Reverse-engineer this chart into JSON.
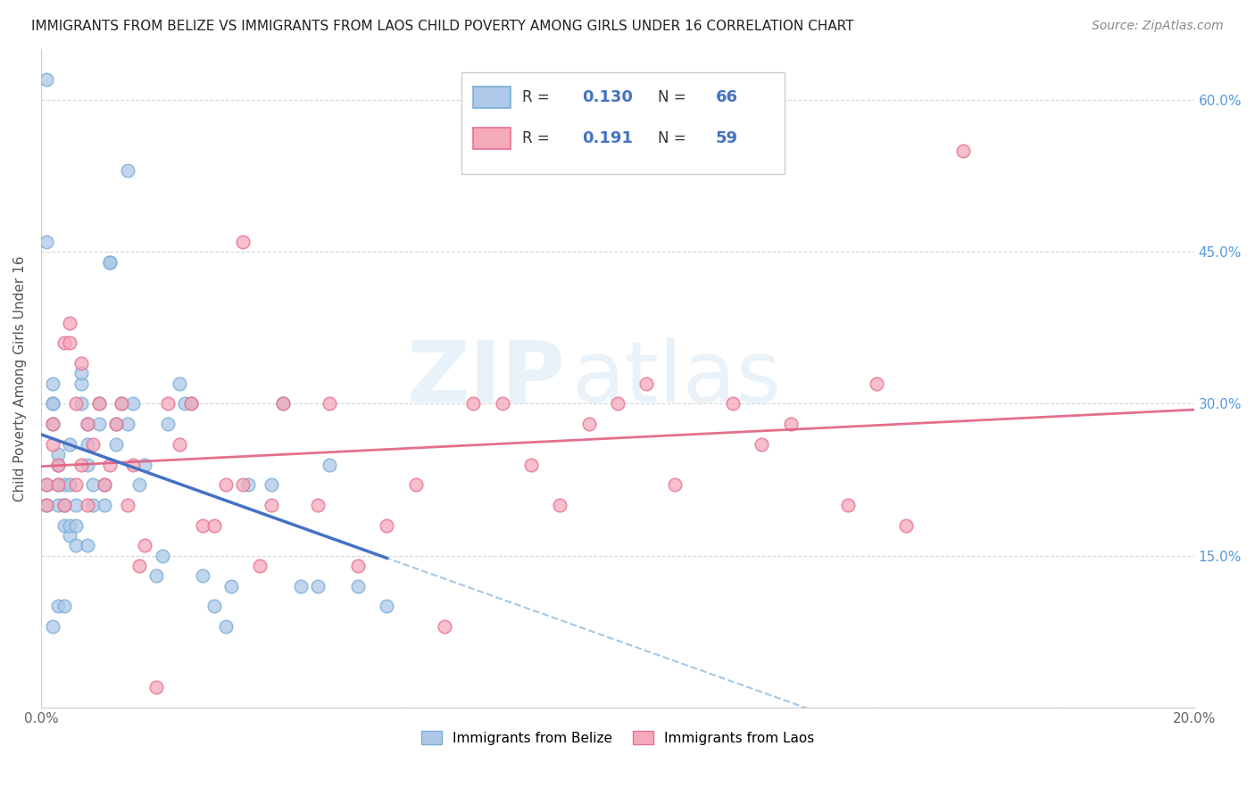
{
  "title": "IMMIGRANTS FROM BELIZE VS IMMIGRANTS FROM LAOS CHILD POVERTY AMONG GIRLS UNDER 16 CORRELATION CHART",
  "source": "Source: ZipAtlas.com",
  "ylabel": "Child Poverty Among Girls Under 16",
  "xlim": [
    0,
    0.2
  ],
  "ylim": [
    0,
    0.65
  ],
  "belize_color": "#adc8e8",
  "laos_color": "#f5aabb",
  "belize_edge": "#7aaed6",
  "laos_edge": "#e87090",
  "trend_belize_color": "#4472c4",
  "trend_belize_dash_color": "#a0c0e0",
  "trend_laos_color": "#e06080",
  "R_belize": 0.13,
  "N_belize": 66,
  "R_laos": 0.191,
  "N_laos": 59,
  "watermark_zip": "ZIP",
  "watermark_atlas": "atlas",
  "background_color": "#ffffff",
  "belize_x": [
    0.001,
    0.001,
    0.001,
    0.002,
    0.002,
    0.002,
    0.002,
    0.003,
    0.003,
    0.003,
    0.003,
    0.004,
    0.004,
    0.004,
    0.005,
    0.005,
    0.005,
    0.005,
    0.006,
    0.006,
    0.006,
    0.007,
    0.007,
    0.007,
    0.008,
    0.008,
    0.008,
    0.009,
    0.009,
    0.01,
    0.01,
    0.011,
    0.011,
    0.012,
    0.012,
    0.013,
    0.013,
    0.014,
    0.015,
    0.016,
    0.017,
    0.018,
    0.02,
    0.021,
    0.022,
    0.024,
    0.025,
    0.026,
    0.028,
    0.03,
    0.032,
    0.033,
    0.036,
    0.04,
    0.042,
    0.045,
    0.048,
    0.05,
    0.055,
    0.06,
    0.015,
    0.008,
    0.001,
    0.003,
    0.002,
    0.004
  ],
  "belize_y": [
    0.2,
    0.22,
    0.46,
    0.28,
    0.3,
    0.3,
    0.32,
    0.2,
    0.22,
    0.24,
    0.25,
    0.18,
    0.2,
    0.22,
    0.17,
    0.18,
    0.22,
    0.26,
    0.16,
    0.18,
    0.2,
    0.3,
    0.32,
    0.33,
    0.24,
    0.26,
    0.28,
    0.2,
    0.22,
    0.28,
    0.3,
    0.2,
    0.22,
    0.44,
    0.44,
    0.26,
    0.28,
    0.3,
    0.28,
    0.3,
    0.22,
    0.24,
    0.13,
    0.15,
    0.28,
    0.32,
    0.3,
    0.3,
    0.13,
    0.1,
    0.08,
    0.12,
    0.22,
    0.22,
    0.3,
    0.12,
    0.12,
    0.24,
    0.12,
    0.1,
    0.53,
    0.16,
    0.62,
    0.1,
    0.08,
    0.1
  ],
  "laos_x": [
    0.001,
    0.001,
    0.002,
    0.002,
    0.003,
    0.003,
    0.004,
    0.004,
    0.005,
    0.005,
    0.006,
    0.006,
    0.007,
    0.007,
    0.008,
    0.008,
    0.009,
    0.01,
    0.011,
    0.012,
    0.013,
    0.014,
    0.015,
    0.016,
    0.017,
    0.018,
    0.02,
    0.022,
    0.024,
    0.026,
    0.028,
    0.03,
    0.032,
    0.035,
    0.038,
    0.042,
    0.048,
    0.055,
    0.06,
    0.065,
    0.07,
    0.08,
    0.09,
    0.1,
    0.11,
    0.12,
    0.13,
    0.14,
    0.15,
    0.16,
    0.035,
    0.04,
    0.05,
    0.075,
    0.085,
    0.095,
    0.105,
    0.125,
    0.145
  ],
  "laos_y": [
    0.2,
    0.22,
    0.26,
    0.28,
    0.22,
    0.24,
    0.2,
    0.36,
    0.36,
    0.38,
    0.22,
    0.3,
    0.24,
    0.34,
    0.2,
    0.28,
    0.26,
    0.3,
    0.22,
    0.24,
    0.28,
    0.3,
    0.2,
    0.24,
    0.14,
    0.16,
    0.02,
    0.3,
    0.26,
    0.3,
    0.18,
    0.18,
    0.22,
    0.22,
    0.14,
    0.3,
    0.2,
    0.14,
    0.18,
    0.22,
    0.08,
    0.3,
    0.2,
    0.3,
    0.22,
    0.3,
    0.28,
    0.2,
    0.18,
    0.55,
    0.46,
    0.2,
    0.3,
    0.3,
    0.24,
    0.28,
    0.32,
    0.26,
    0.32
  ],
  "laos_outlier_x": [
    0.14
  ],
  "laos_outlier_y": [
    0.55
  ]
}
